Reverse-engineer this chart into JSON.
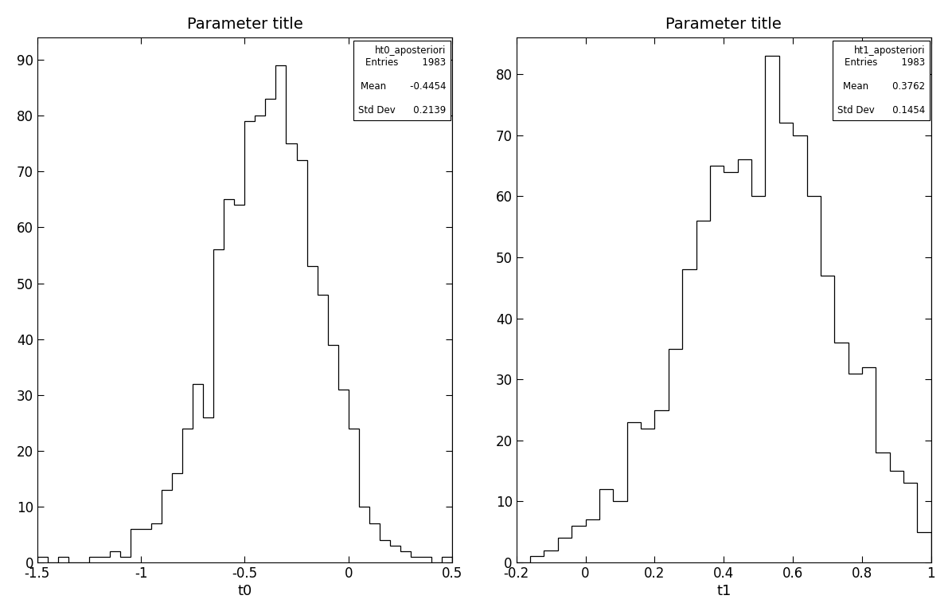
{
  "title": "Parameter title",
  "plot1": {
    "name": "ht0_aposteriori",
    "xlabel": "t0",
    "entries": 1983,
    "mean": -0.4454,
    "std_dev": 0.2139,
    "xlim": [
      -1.5,
      0.5
    ],
    "ylim": [
      0,
      94
    ],
    "yticks": [
      0,
      10,
      20,
      30,
      40,
      50,
      60,
      70,
      80,
      90
    ],
    "xticks": [
      -1.5,
      -1.0,
      -0.5,
      0.0,
      0.5
    ],
    "xticklabels": [
      "-1.5",
      "-1",
      "-0.5",
      "0",
      "0.5"
    ],
    "vline_x": 0.5,
    "bin_edges": [
      -1.55,
      -1.5,
      -1.45,
      -1.4,
      -1.35,
      -1.3,
      -1.25,
      -1.2,
      -1.15,
      -1.1,
      -1.05,
      -1.0,
      -0.95,
      -0.9,
      -0.85,
      -0.8,
      -0.75,
      -0.7,
      -0.65,
      -0.6,
      -0.55,
      -0.5,
      -0.45,
      -0.4,
      -0.35,
      -0.3,
      -0.25,
      -0.2,
      -0.15,
      -0.1,
      -0.05,
      0.0,
      0.05,
      0.1,
      0.15,
      0.2,
      0.25,
      0.3,
      0.35,
      0.4,
      0.45,
      0.5
    ],
    "bin_heights": [
      0,
      1,
      0,
      1,
      0,
      0,
      1,
      1,
      2,
      1,
      6,
      6,
      7,
      13,
      16,
      24,
      32,
      26,
      56,
      65,
      64,
      79,
      80,
      83,
      89,
      75,
      72,
      53,
      48,
      39,
      31,
      24,
      10,
      7,
      4,
      3,
      2,
      1,
      1,
      0,
      1
    ]
  },
  "plot2": {
    "name": "ht1_aposteriori",
    "xlabel": "t1",
    "entries": 1983,
    "mean": 0.3762,
    "std_dev": 0.1454,
    "xlim": [
      -0.2,
      1.0
    ],
    "ylim": [
      0,
      86
    ],
    "yticks": [
      0,
      10,
      20,
      30,
      40,
      50,
      60,
      70,
      80
    ],
    "xticks": [
      -0.2,
      0.0,
      0.2,
      0.4,
      0.6,
      0.8,
      1.0
    ],
    "xticklabels": [
      "-0.2",
      "0",
      "0.2",
      "0.4",
      "0.6",
      "0.8",
      "1"
    ],
    "vline_x": 1.0,
    "bin_edges": [
      -0.2,
      -0.16,
      -0.12,
      -0.08,
      -0.04,
      0.0,
      0.04,
      0.08,
      0.12,
      0.16,
      0.2,
      0.24,
      0.28,
      0.32,
      0.36,
      0.4,
      0.44,
      0.48,
      0.52,
      0.56,
      0.6,
      0.64,
      0.68,
      0.72,
      0.76,
      0.8,
      0.84,
      0.88,
      0.92,
      0.96,
      1.0
    ],
    "bin_heights": [
      0,
      1,
      2,
      4,
      6,
      7,
      12,
      10,
      23,
      22,
      25,
      35,
      48,
      56,
      65,
      64,
      66,
      60,
      83,
      72,
      70,
      60,
      47,
      36,
      31,
      32,
      18,
      15,
      13,
      5
    ]
  },
  "background_color": "#ffffff",
  "line_color": "#000000"
}
